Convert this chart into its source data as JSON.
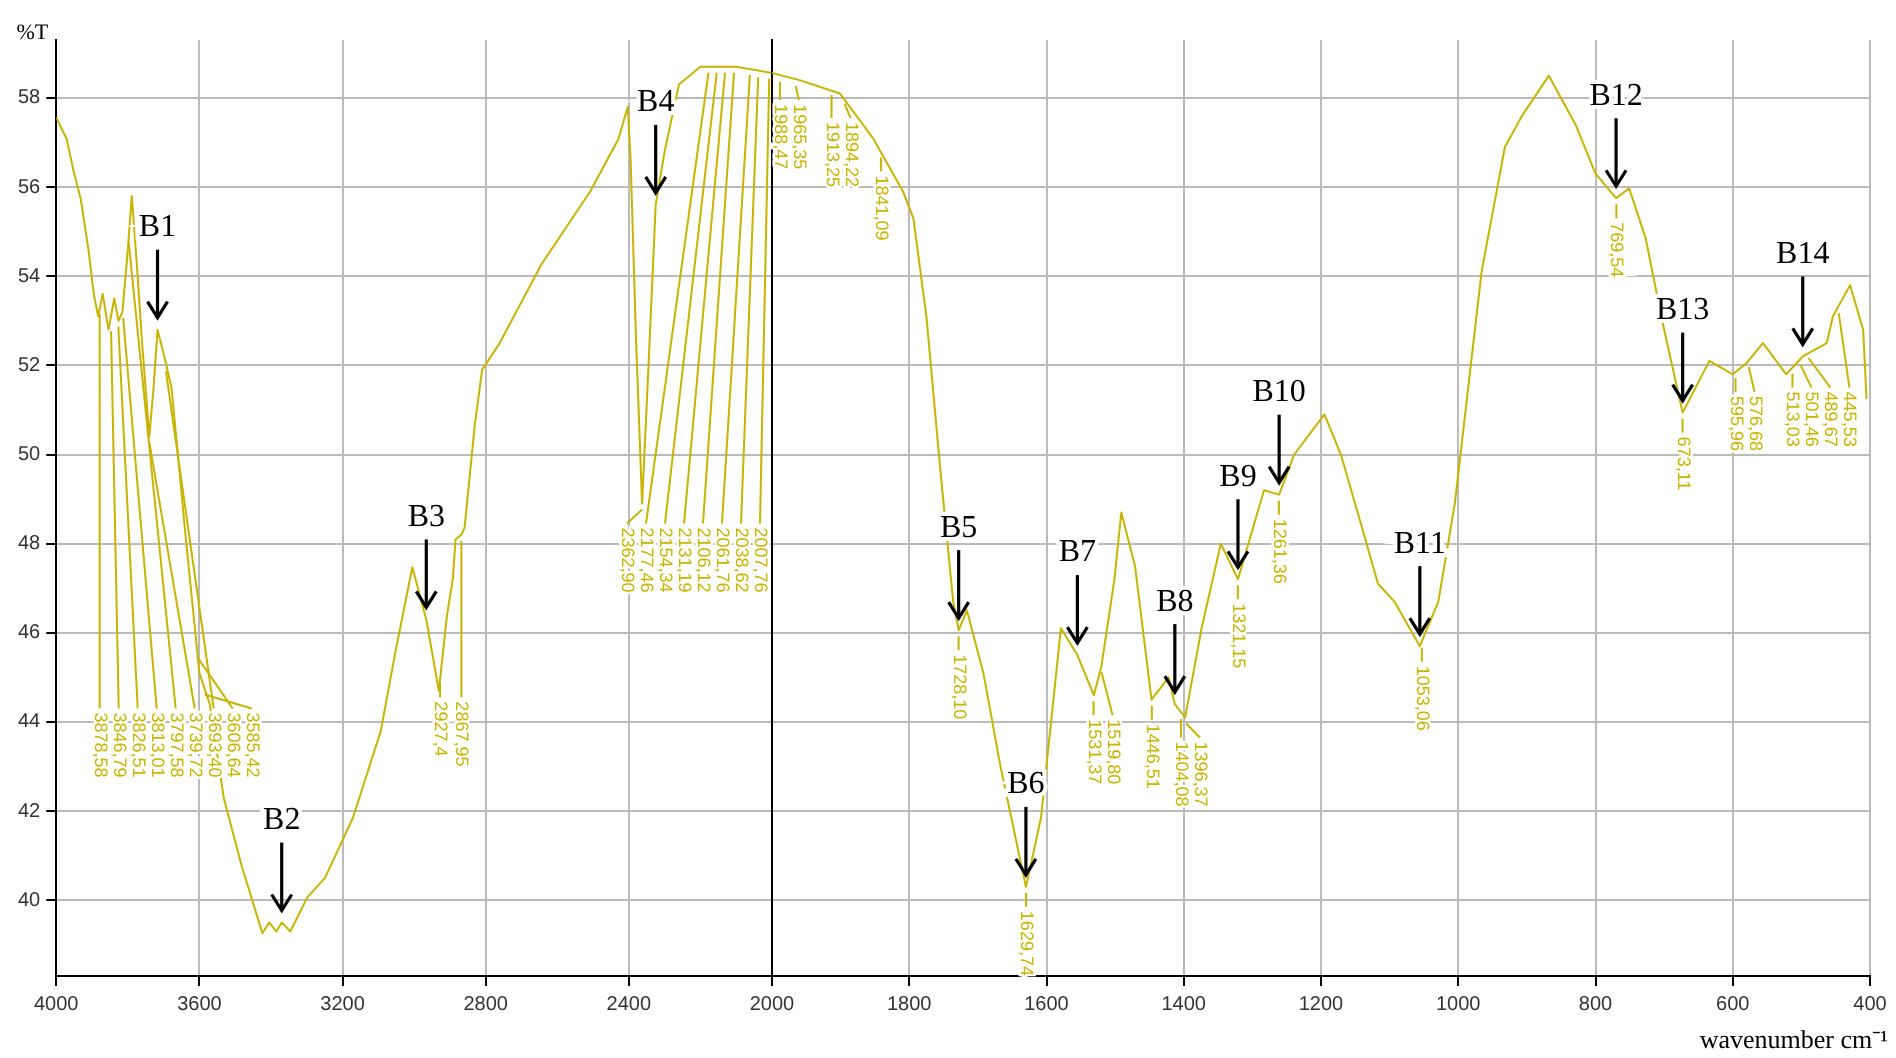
{
  "chart_data": [
    {
      "type": "line",
      "ylabel": "%T",
      "xlim": [
        4000,
        2000
      ],
      "xticks": [
        4000,
        3600,
        3200,
        2800,
        2400,
        2000
      ],
      "ylim": [
        38.3,
        59.3
      ],
      "yticks": [
        40,
        42,
        44,
        46,
        48,
        50,
        52,
        54,
        56,
        58
      ],
      "grid": true,
      "legend": false,
      "series": [
        {
          "color": "#c8b400",
          "x": [
            4000,
            3971,
            3951,
            3932,
            3910,
            3895,
            3883,
            3870,
            3854,
            3838,
            3826,
            3815,
            3800,
            3789,
            3776,
            3760,
            3740,
            3728,
            3717,
            3698,
            3678,
            3660,
            3639,
            3600,
            3571,
            3532,
            3483,
            3424,
            3405,
            3385,
            3370,
            3346,
            3298,
            3249,
            3171,
            3093,
            3054,
            3005,
            2966,
            2931,
            2908,
            2892,
            2884,
            2868,
            2859,
            2830,
            2810,
            2761,
            2644,
            2508,
            2429,
            2403,
            2395,
            2380,
            2363,
            2345,
            2325,
            2300,
            2260,
            2200,
            2100,
            2000
          ],
          "values": [
            57.56,
            57.08,
            56.34,
            55.75,
            54.6,
            53.6,
            53.1,
            53.6,
            52.8,
            53.5,
            53.0,
            53.2,
            54.6,
            55.8,
            54.4,
            52.5,
            50.4,
            51.5,
            52.8,
            52.2,
            51.5,
            50.0,
            48.2,
            45.1,
            44.4,
            42.3,
            40.8,
            39.26,
            39.5,
            39.3,
            39.5,
            39.3,
            40.07,
            40.5,
            41.85,
            43.8,
            45.5,
            47.47,
            46.3,
            44.7,
            46.4,
            47.2,
            48.1,
            48.2,
            48.36,
            50.7,
            51.9,
            52.5,
            54.27,
            55.9,
            57.08,
            57.8,
            56.6,
            52.6,
            48.9,
            52.0,
            55.6,
            56.8,
            58.3,
            58.7,
            58.7,
            58.56
          ]
        }
      ],
      "annotations": [
        {
          "text": "B1",
          "x": 3717,
          "y": 52.8
        },
        {
          "text": "B2",
          "x": 3370,
          "y": 39.5
        },
        {
          "text": "B3",
          "x": 2966,
          "y": 46.3
        },
        {
          "text": "B4",
          "x": 2325,
          "y": 55.6
        },
        {
          "text": "3878,58",
          "x": 3878.58,
          "y": 53.3
        },
        {
          "text": "3846,79",
          "x": 3846.79,
          "y": 52.9
        },
        {
          "text": "3826,51",
          "x": 3826.51,
          "y": 53.0
        },
        {
          "text": "3813,01",
          "x": 3813.01,
          "y": 53.2
        },
        {
          "text": "3797,58",
          "x": 3797.58,
          "y": 54.9
        },
        {
          "text": "3739,72",
          "x": 3739.72,
          "y": 50.4
        },
        {
          "text": "3693,40",
          "x": 3693.4,
          "y": 52.0
        },
        {
          "text": "3606,64",
          "x": 3606.64,
          "y": 45.6
        },
        {
          "text": "3585,42",
          "x": 3585.42,
          "y": 44.75
        },
        {
          "text": "2927,4",
          "x": 2927.4,
          "y": 45.0
        },
        {
          "text": "2867,95",
          "x": 2867.95,
          "y": 48.2
        },
        {
          "text": "2362,90",
          "x": 2362.9,
          "y": 48.9
        },
        {
          "text": "2177,46",
          "x": 2177.46,
          "y": 58.7
        },
        {
          "text": "2154,34",
          "x": 2154.34,
          "y": 58.7
        },
        {
          "text": "2131,19",
          "x": 2131.19,
          "y": 58.7
        },
        {
          "text": "2106,12",
          "x": 2106.12,
          "y": 58.7
        },
        {
          "text": "2061,76",
          "x": 2061.76,
          "y": 58.65
        },
        {
          "text": "2038,62",
          "x": 2038.62,
          "y": 58.6
        },
        {
          "text": "2007,76",
          "x": 2007.76,
          "y": 58.57
        }
      ]
    },
    {
      "type": "line",
      "xlabel": "wavenumber cm⁻¹",
      "xlim": [
        2000,
        400
      ],
      "xticks": [
        {
          "value": 2000,
          "label": null
        },
        1800,
        1600,
        1400,
        1200,
        1000,
        800,
        600,
        400
      ],
      "ylim": [
        38.3,
        59.3
      ],
      "yticks": [
        40,
        42,
        44,
        46,
        48,
        50,
        52,
        54,
        56,
        58
      ],
      "grid": true,
      "legend": false,
      "tick_labels": "x",
      "series": [
        {
          "color": "#c8b400",
          "x": [
            2000,
            1960,
            1901,
            1853,
            1809,
            1794,
            1775,
            1755,
            1736,
            1728,
            1716,
            1692,
            1667,
            1630,
            1608,
            1579,
            1555,
            1531,
            1520,
            1501,
            1491,
            1471,
            1447,
            1422,
            1413,
            1398,
            1374,
            1346,
            1321,
            1283,
            1261,
            1239,
            1195,
            1171,
            1141,
            1117,
            1093,
            1056,
            1029,
            1005,
            966,
            932,
            907,
            868,
            829,
            800,
            770,
            751,
            727,
            702,
            673,
            634,
            600,
            580,
            556,
            522,
            498,
            463,
            454,
            429,
            410,
            405
          ],
          "values": [
            58.56,
            58.4,
            58.1,
            57.1,
            55.9,
            55.3,
            53.1,
            49.7,
            46.7,
            46.06,
            46.5,
            45.1,
            43.0,
            40.3,
            41.85,
            46.1,
            45.5,
            44.6,
            45.25,
            47.2,
            48.7,
            47.5,
            44.5,
            45.0,
            44.4,
            44.1,
            46.1,
            48.0,
            47.2,
            49.2,
            49.1,
            50.0,
            50.9,
            50.0,
            48.4,
            47.1,
            46.7,
            45.7,
            46.7,
            48.9,
            54.1,
            56.9,
            57.6,
            58.5,
            57.4,
            56.3,
            55.75,
            55.97,
            54.86,
            52.94,
            50.94,
            52.1,
            51.8,
            52.05,
            52.5,
            51.8,
            52.2,
            52.5,
            53.1,
            53.8,
            52.8,
            51.24
          ]
        }
      ],
      "annotations": [
        {
          "text": "B5",
          "x": 1728,
          "y": 46.06
        },
        {
          "text": "B6",
          "x": 1630,
          "y": 40.3
        },
        {
          "text": "B7",
          "x": 1555,
          "y": 45.5
        },
        {
          "text": "B8",
          "x": 1413,
          "y": 44.4
        },
        {
          "text": "B9",
          "x": 1321,
          "y": 47.2
        },
        {
          "text": "B10",
          "x": 1261,
          "y": 49.1
        },
        {
          "text": "B11",
          "x": 1056,
          "y": 45.7
        },
        {
          "text": "B12",
          "x": 770,
          "y": 55.75
        },
        {
          "text": "B13",
          "x": 673,
          "y": 50.94
        },
        {
          "text": "B14",
          "x": 498,
          "y": 52.2
        },
        {
          "text": "1988,47",
          "x": 1988.47,
          "y": 58.5
        },
        {
          "text": "1965,35",
          "x": 1965.35,
          "y": 58.4
        },
        {
          "text": "1913,25",
          "x": 1913.25,
          "y": 58.2
        },
        {
          "text": "1894,22",
          "x": 1894.22,
          "y": 58.0
        },
        {
          "text": "1841,09",
          "x": 1841.09,
          "y": 56.8
        },
        {
          "text": "1728,10",
          "x": 1728.1,
          "y": 46.06
        },
        {
          "text": "1629,74",
          "x": 1629.74,
          "y": 40.3
        },
        {
          "text": "1531,37",
          "x": 1531.37,
          "y": 44.6
        },
        {
          "text": "1519,80",
          "x": 1519.8,
          "y": 45.25
        },
        {
          "text": "1446,51",
          "x": 1446.51,
          "y": 44.5
        },
        {
          "text": "1404,08",
          "x": 1404.08,
          "y": 44.2
        },
        {
          "text": "1396,37",
          "x": 1396.37,
          "y": 44.1
        },
        {
          "text": "1321,15",
          "x": 1321.15,
          "y": 47.2
        },
        {
          "text": "1261,36",
          "x": 1261.36,
          "y": 49.1
        },
        {
          "text": "1053,06",
          "x": 1053.06,
          "y": 45.8
        },
        {
          "text": "769,54",
          "x": 769.54,
          "y": 55.75
        },
        {
          "text": "673,11",
          "x": 673.11,
          "y": 50.94
        },
        {
          "text": "595,96",
          "x": 595.96,
          "y": 51.85
        },
        {
          "text": "576,68",
          "x": 576.68,
          "y": 52.1
        },
        {
          "text": "513,03",
          "x": 513.03,
          "y": 51.95
        },
        {
          "text": "501,46",
          "x": 501.46,
          "y": 52.15
        },
        {
          "text": "489,67",
          "x": 489.67,
          "y": 52.3
        },
        {
          "text": "445,53",
          "x": 445.53,
          "y": 53.3
        }
      ]
    }
  ]
}
